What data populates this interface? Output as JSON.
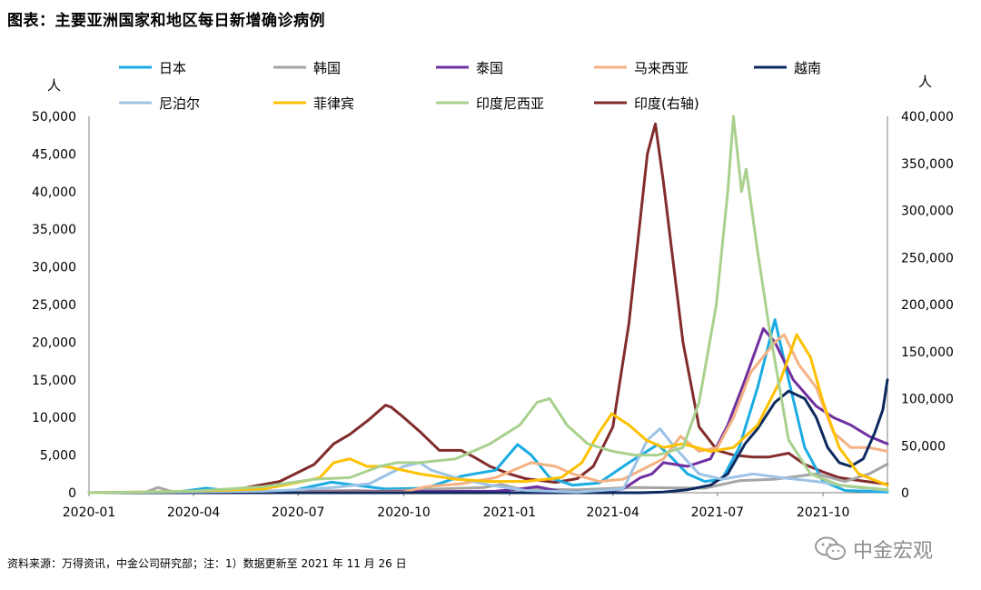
{
  "figure": {
    "title": "图表：主要亚洲国家和地区每日新增确诊病例",
    "source_note": "资料来源：万得资讯，中金公司研究部；注：1）数据更新至 2021 年 11 月 26 日",
    "watermark": "中金宏观",
    "watermark_icon": "wechat-icon"
  },
  "chart_data": {
    "type": "line",
    "ylabel_left": "人",
    "ylabel_right": "人",
    "ylim_left": [
      0,
      50000
    ],
    "ylim_right": [
      0,
      400000
    ],
    "yticks_left": [
      "0",
      "5,000",
      "10,000",
      "15,000",
      "20,000",
      "25,000",
      "30,000",
      "35,000",
      "40,000",
      "45,000",
      "50,000"
    ],
    "yticks_right": [
      "0",
      "50,000",
      "100,000",
      "150,000",
      "200,000",
      "250,000",
      "300,000",
      "350,000",
      "400,000"
    ],
    "xlim": [
      "2020-01-01",
      "2021-11-26"
    ],
    "xticks": [
      "2020-01",
      "2020-04",
      "2020-07",
      "2020-10",
      "2021-01",
      "2021-04",
      "2021-07",
      "2021-10"
    ],
    "grid": false,
    "legend_position": "top",
    "series": [
      {
        "name": "日本",
        "color": "#1AACE3",
        "axis": "left",
        "points": [
          [
            "2020-01-01",
            0
          ],
          [
            "2020-03-15",
            50
          ],
          [
            "2020-04-12",
            600
          ],
          [
            "2020-05-15",
            50
          ],
          [
            "2020-06-20",
            100
          ],
          [
            "2020-07-30",
            1400
          ],
          [
            "2020-08-10",
            1200
          ],
          [
            "2020-09-15",
            500
          ],
          [
            "2020-10-20",
            600
          ],
          [
            "2020-11-20",
            2200
          ],
          [
            "2020-12-20",
            3000
          ],
          [
            "2021-01-08",
            6400
          ],
          [
            "2021-01-20",
            5000
          ],
          [
            "2021-02-05",
            2000
          ],
          [
            "2021-02-25",
            1000
          ],
          [
            "2021-03-20",
            1300
          ],
          [
            "2021-04-15",
            4000
          ],
          [
            "2021-05-10",
            6400
          ],
          [
            "2021-05-20",
            5000
          ],
          [
            "2021-06-05",
            2500
          ],
          [
            "2021-06-20",
            1500
          ],
          [
            "2021-07-05",
            1800
          ],
          [
            "2021-07-20",
            6000
          ],
          [
            "2021-08-05",
            14000
          ],
          [
            "2021-08-20",
            23000
          ],
          [
            "2021-09-01",
            15000
          ],
          [
            "2021-09-15",
            6000
          ],
          [
            "2021-10-01",
            1500
          ],
          [
            "2021-10-20",
            300
          ],
          [
            "2021-11-26",
            100
          ]
        ]
      },
      {
        "name": "韩国",
        "color": "#A5A5A5",
        "axis": "left",
        "points": [
          [
            "2020-01-01",
            0
          ],
          [
            "2020-02-20",
            100
          ],
          [
            "2020-03-01",
            700
          ],
          [
            "2020-03-12",
            200
          ],
          [
            "2020-04-15",
            20
          ],
          [
            "2020-08-20",
            300
          ],
          [
            "2020-09-10",
            200
          ],
          [
            "2020-12-10",
            700
          ],
          [
            "2020-12-25",
            1100
          ],
          [
            "2021-01-10",
            500
          ],
          [
            "2021-03-01",
            400
          ],
          [
            "2021-04-20",
            700
          ],
          [
            "2021-06-20",
            600
          ],
          [
            "2021-07-20",
            1600
          ],
          [
            "2021-08-20",
            1800
          ],
          [
            "2021-09-25",
            2500
          ],
          [
            "2021-10-20",
            1500
          ],
          [
            "2021-11-10",
            2500
          ],
          [
            "2021-11-26",
            3800
          ]
        ]
      },
      {
        "name": "泰国",
        "color": "#7030A0",
        "axis": "left",
        "points": [
          [
            "2020-01-01",
            0
          ],
          [
            "2020-12-20",
            200
          ],
          [
            "2021-01-10",
            500
          ],
          [
            "2021-01-25",
            800
          ],
          [
            "2021-02-15",
            150
          ],
          [
            "2021-03-20",
            100
          ],
          [
            "2021-04-10",
            500
          ],
          [
            "2021-04-25",
            2000
          ],
          [
            "2021-05-05",
            2500
          ],
          [
            "2021-05-15",
            4000
          ],
          [
            "2021-06-05",
            3500
          ],
          [
            "2021-06-25",
            4500
          ],
          [
            "2021-07-10",
            9000
          ],
          [
            "2021-07-25",
            15000
          ],
          [
            "2021-08-10",
            21800
          ],
          [
            "2021-08-20",
            20000
          ],
          [
            "2021-09-05",
            15000
          ],
          [
            "2021-09-25",
            11500
          ],
          [
            "2021-10-10",
            10000
          ],
          [
            "2021-10-25",
            9000
          ],
          [
            "2021-11-10",
            7500
          ],
          [
            "2021-11-26",
            6500
          ]
        ]
      },
      {
        "name": "马来西亚",
        "color": "#F4B183",
        "axis": "left",
        "points": [
          [
            "2020-01-01",
            0
          ],
          [
            "2020-10-01",
            100
          ],
          [
            "2020-10-20",
            800
          ],
          [
            "2020-11-20",
            1200
          ],
          [
            "2020-12-20",
            2000
          ],
          [
            "2021-01-20",
            4000
          ],
          [
            "2021-02-10",
            3500
          ],
          [
            "2021-02-25",
            2500
          ],
          [
            "2021-03-20",
            1500
          ],
          [
            "2021-04-10",
            1800
          ],
          [
            "2021-05-15",
            4500
          ],
          [
            "2021-05-30",
            7500
          ],
          [
            "2021-06-15",
            5500
          ],
          [
            "2021-07-01",
            6000
          ],
          [
            "2021-07-15",
            10000
          ],
          [
            "2021-07-30",
            16000
          ],
          [
            "2021-08-20",
            20000
          ],
          [
            "2021-08-28",
            21000
          ],
          [
            "2021-09-10",
            17000
          ],
          [
            "2021-09-25",
            14000
          ],
          [
            "2021-10-10",
            8000
          ],
          [
            "2021-10-25",
            6000
          ],
          [
            "2021-11-10",
            6000
          ],
          [
            "2021-11-26",
            5500
          ]
        ]
      },
      {
        "name": "越南",
        "color": "#0D2A5E",
        "axis": "left",
        "points": [
          [
            "2020-01-01",
            0
          ],
          [
            "2021-04-25",
            0
          ],
          [
            "2021-05-15",
            100
          ],
          [
            "2021-06-05",
            400
          ],
          [
            "2021-06-25",
            1000
          ],
          [
            "2021-07-10",
            2500
          ],
          [
            "2021-07-25",
            6500
          ],
          [
            "2021-08-05",
            8500
          ],
          [
            "2021-08-20",
            12000
          ],
          [
            "2021-09-01",
            13500
          ],
          [
            "2021-09-15",
            12500
          ],
          [
            "2021-09-25",
            10000
          ],
          [
            "2021-10-05",
            6000
          ],
          [
            "2021-10-15",
            4000
          ],
          [
            "2021-10-25",
            3500
          ],
          [
            "2021-11-05",
            4500
          ],
          [
            "2021-11-15",
            8000
          ],
          [
            "2021-11-22",
            11000
          ],
          [
            "2021-11-26",
            15000
          ]
        ]
      },
      {
        "name": "尼泊尔",
        "color": "#9DC3E6",
        "axis": "left",
        "points": [
          [
            "2020-01-01",
            0
          ],
          [
            "2020-06-01",
            200
          ],
          [
            "2020-07-01",
            400
          ],
          [
            "2020-08-01",
            700
          ],
          [
            "2020-09-01",
            1200
          ],
          [
            "2020-10-01",
            3500
          ],
          [
            "2020-10-15",
            4000
          ],
          [
            "2020-10-25",
            3000
          ],
          [
            "2020-11-15",
            2000
          ],
          [
            "2020-12-15",
            1000
          ],
          [
            "2021-01-15",
            300
          ],
          [
            "2021-03-01",
            100
          ],
          [
            "2021-04-10",
            500
          ],
          [
            "2021-05-01",
            7000
          ],
          [
            "2021-05-12",
            8500
          ],
          [
            "2021-05-25",
            6000
          ],
          [
            "2021-06-15",
            2500
          ],
          [
            "2021-07-05",
            1800
          ],
          [
            "2021-08-01",
            2500
          ],
          [
            "2021-08-25",
            2000
          ],
          [
            "2021-09-25",
            1500
          ],
          [
            "2021-10-25",
            800
          ],
          [
            "2021-11-26",
            300
          ]
        ]
      },
      {
        "name": "菲律宾",
        "color": "#FFC000",
        "axis": "left",
        "points": [
          [
            "2020-01-01",
            0
          ],
          [
            "2020-04-01",
            200
          ],
          [
            "2020-06-01",
            500
          ],
          [
            "2020-07-05",
            1500
          ],
          [
            "2020-07-20",
            2000
          ],
          [
            "2020-08-01",
            4000
          ],
          [
            "2020-08-15",
            4500
          ],
          [
            "2020-08-30",
            3500
          ],
          [
            "2020-09-15",
            3500
          ],
          [
            "2020-10-15",
            2500
          ],
          [
            "2020-11-15",
            1800
          ],
          [
            "2020-12-15",
            1500
          ],
          [
            "2021-01-15",
            1500
          ],
          [
            "2021-02-15",
            2000
          ],
          [
            "2021-03-05",
            4000
          ],
          [
            "2021-03-20",
            8000
          ],
          [
            "2021-03-31",
            10500
          ],
          [
            "2021-04-15",
            9000
          ],
          [
            "2021-04-30",
            7000
          ],
          [
            "2021-05-15",
            6000
          ],
          [
            "2021-06-01",
            6500
          ],
          [
            "2021-06-25",
            5500
          ],
          [
            "2021-07-15",
            6000
          ],
          [
            "2021-08-05",
            9000
          ],
          [
            "2021-08-25",
            15000
          ],
          [
            "2021-09-08",
            21000
          ],
          [
            "2021-09-20",
            18000
          ],
          [
            "2021-10-01",
            12000
          ],
          [
            "2021-10-15",
            6000
          ],
          [
            "2021-11-01",
            2500
          ],
          [
            "2021-11-26",
            1000
          ]
        ]
      },
      {
        "name": "印度尼西亚",
        "color": "#A9D18E",
        "axis": "left",
        "points": [
          [
            "2020-01-01",
            0
          ],
          [
            "2020-04-01",
            200
          ],
          [
            "2020-06-01",
            800
          ],
          [
            "2020-07-15",
            1800
          ],
          [
            "2020-08-15",
            2000
          ],
          [
            "2020-09-10",
            3500
          ],
          [
            "2020-09-25",
            4000
          ],
          [
            "2020-10-15",
            4000
          ],
          [
            "2020-11-15",
            4500
          ],
          [
            "2020-12-15",
            6500
          ],
          [
            "2021-01-10",
            9000
          ],
          [
            "2021-01-25",
            12000
          ],
          [
            "2021-02-05",
            12500
          ],
          [
            "2021-02-20",
            9000
          ],
          [
            "2021-03-10",
            6500
          ],
          [
            "2021-04-01",
            5500
          ],
          [
            "2021-04-20",
            5000
          ],
          [
            "2021-05-10",
            5000
          ],
          [
            "2021-06-01",
            6000
          ],
          [
            "2021-06-15",
            12000
          ],
          [
            "2021-06-30",
            25000
          ],
          [
            "2021-07-10",
            40000
          ],
          [
            "2021-07-15",
            50000
          ],
          [
            "2021-07-22",
            40000
          ],
          [
            "2021-07-26",
            43000
          ],
          [
            "2021-08-05",
            32000
          ],
          [
            "2021-08-15",
            22000
          ],
          [
            "2021-09-01",
            7000
          ],
          [
            "2021-09-20",
            2500
          ],
          [
            "2021-10-15",
            1000
          ],
          [
            "2021-11-26",
            400
          ]
        ]
      },
      {
        "name": "印度(右轴)",
        "color": "#822C2C",
        "axis": "right",
        "points": [
          [
            "2020-01-01",
            0
          ],
          [
            "2020-03-15",
            100
          ],
          [
            "2020-04-15",
            1000
          ],
          [
            "2020-05-15",
            5000
          ],
          [
            "2020-06-15",
            12000
          ],
          [
            "2020-07-15",
            30000
          ],
          [
            "2020-08-01",
            52000
          ],
          [
            "2020-08-15",
            62000
          ],
          [
            "2020-09-01",
            78000
          ],
          [
            "2020-09-15",
            93000
          ],
          [
            "2020-09-20",
            91000
          ],
          [
            "2020-10-01",
            80000
          ],
          [
            "2020-10-15",
            65000
          ],
          [
            "2020-11-01",
            45000
          ],
          [
            "2020-11-20",
            45000
          ],
          [
            "2020-12-01",
            38000
          ],
          [
            "2020-12-15",
            28000
          ],
          [
            "2021-01-01",
            20000
          ],
          [
            "2021-01-15",
            15000
          ],
          [
            "2021-02-10",
            11000
          ],
          [
            "2021-03-01",
            15000
          ],
          [
            "2021-03-15",
            28000
          ],
          [
            "2021-04-01",
            70000
          ],
          [
            "2021-04-15",
            180000
          ],
          [
            "2021-05-01",
            360000
          ],
          [
            "2021-05-08",
            392000
          ],
          [
            "2021-05-15",
            330000
          ],
          [
            "2021-06-01",
            160000
          ],
          [
            "2021-06-15",
            70000
          ],
          [
            "2021-07-01",
            45000
          ],
          [
            "2021-07-15",
            40000
          ],
          [
            "2021-08-01",
            38000
          ],
          [
            "2021-08-15",
            38000
          ],
          [
            "2021-09-01",
            42000
          ],
          [
            "2021-09-15",
            30000
          ],
          [
            "2021-10-01",
            22000
          ],
          [
            "2021-10-15",
            16000
          ],
          [
            "2021-11-01",
            13000
          ],
          [
            "2021-11-26",
            9000
          ]
        ]
      }
    ]
  }
}
